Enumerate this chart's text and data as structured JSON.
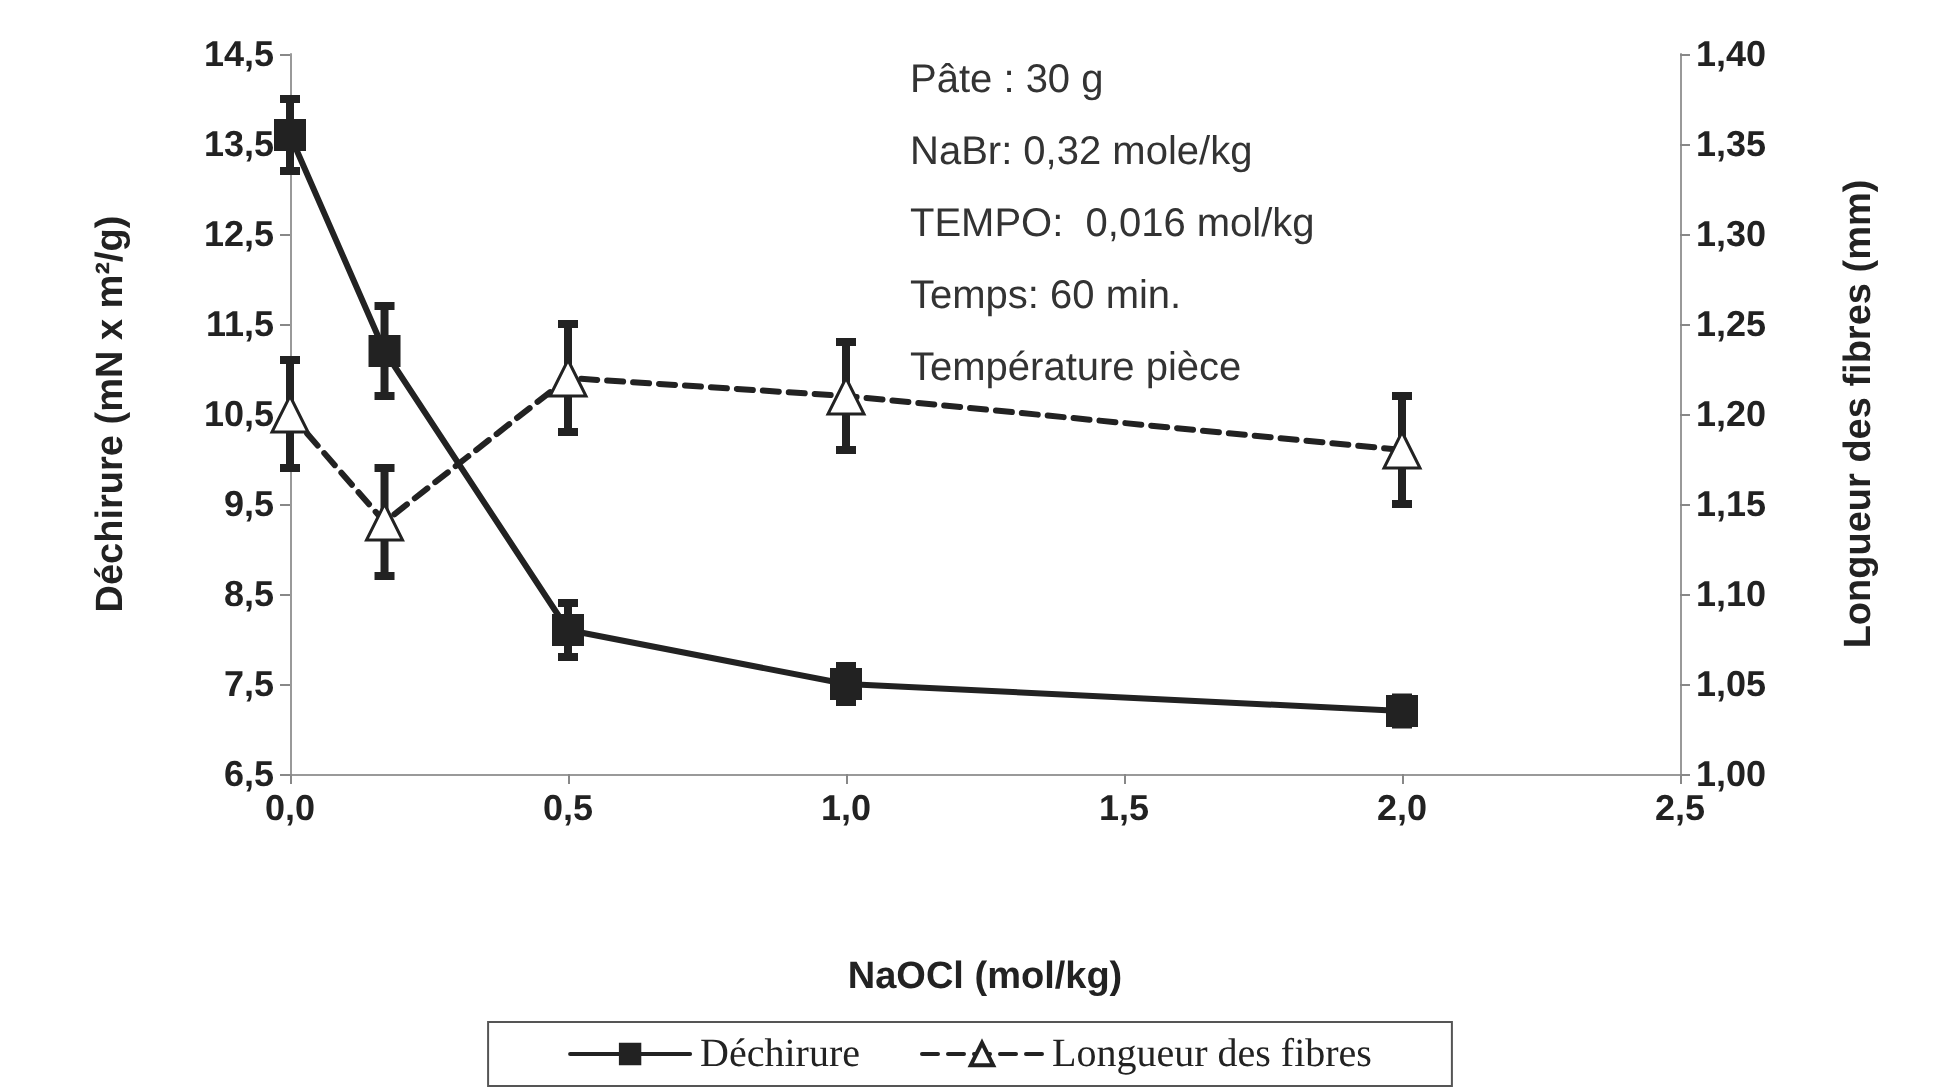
{
  "chart_data": {
    "type": "line",
    "xlabel": "NaOCl (mol/kg)",
    "ylabel": "Déchirure (mN x m²/g)",
    "y2label": "Longueur des fibres (mm)",
    "x": [
      0,
      0.17,
      0.5,
      1.0,
      2.0
    ],
    "series": [
      {
        "name": "Déchirure",
        "color": "#222222",
        "marker": "square",
        "line_style": "solid",
        "values": [
          13.6,
          11.2,
          8.1,
          7.5,
          7.2
        ],
        "errors": [
          0.4,
          0.5,
          0.3,
          0.2,
          0.15
        ]
      },
      {
        "name": "Longueur des fibres",
        "color": "#222222",
        "marker": "triangle",
        "line_style": "dashed",
        "axis": "y2",
        "values": [
          1.2,
          1.14,
          1.22,
          1.21,
          1.18
        ],
        "errors": [
          0.03,
          0.03,
          0.03,
          0.03,
          0.03
        ]
      }
    ],
    "xlim": [
      0,
      2.5
    ],
    "xticks": [
      {
        "value": 0,
        "label": "0,0"
      },
      {
        "value": 0.5,
        "label": "0,5"
      },
      {
        "value": 1.0,
        "label": "1,0"
      },
      {
        "value": 1.5,
        "label": "1,5"
      },
      {
        "value": 2.0,
        "label": "2,0"
      },
      {
        "value": 2.5,
        "label": "2,5"
      }
    ],
    "ylim": [
      6.5,
      14.5
    ],
    "yticks": [
      {
        "value": 6.5,
        "label": "6,5"
      },
      {
        "value": 7.5,
        "label": "7,5"
      },
      {
        "value": 8.5,
        "label": "8,5"
      },
      {
        "value": 9.5,
        "label": "9,5"
      },
      {
        "value": 10.5,
        "label": "10,5"
      },
      {
        "value": 11.5,
        "label": "11,5"
      },
      {
        "value": 12.5,
        "label": "12,5"
      },
      {
        "value": 13.5,
        "label": "13,5"
      },
      {
        "value": 14.5,
        "label": "14,5"
      }
    ],
    "y2lim": [
      1.0,
      1.4
    ],
    "y2ticks": [
      {
        "value": 1.0,
        "label": "1,00"
      },
      {
        "value": 1.05,
        "label": "1,05"
      },
      {
        "value": 1.1,
        "label": "1,10"
      },
      {
        "value": 1.15,
        "label": "1,15"
      },
      {
        "value": 1.2,
        "label": "1,20"
      },
      {
        "value": 1.25,
        "label": "1,25"
      },
      {
        "value": 1.3,
        "label": "1,30"
      },
      {
        "value": 1.35,
        "label": "1,35"
      },
      {
        "value": 1.4,
        "label": "1,40"
      }
    ],
    "annotations": [
      "Pâte : 30 g",
      "NaBr: 0,32 mole/kg",
      "TEMPO:  0,016 mol/kg",
      "Temps: 60 min.",
      "Température pièce"
    ],
    "grid": false,
    "legend": "bottom"
  }
}
